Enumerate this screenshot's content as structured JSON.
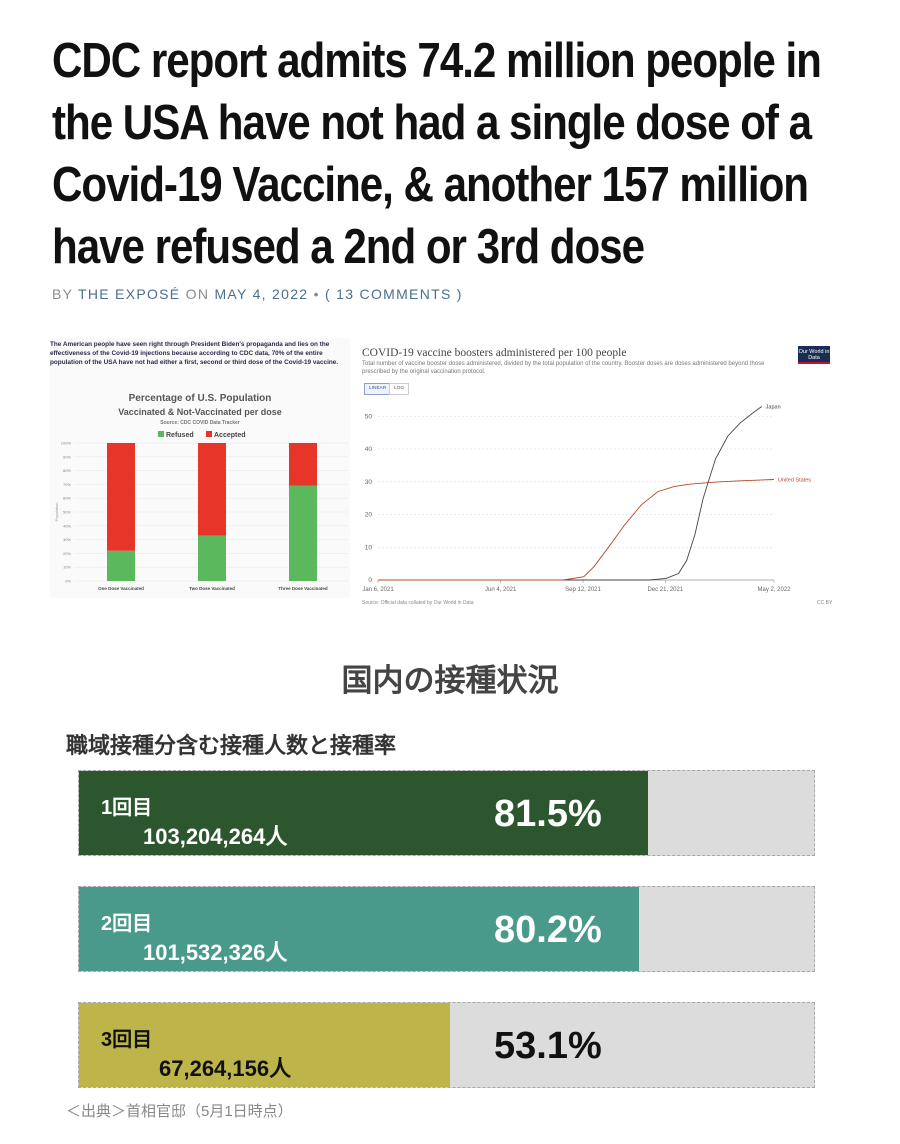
{
  "article": {
    "headline": "CDC report admits 74.2 million people in the USA have not had a single dose of a Covid-19 Vaccine, & another 157 million have refused a 2nd or 3rd dose",
    "byline": {
      "by": "BY",
      "author": "THE EXPOSÉ",
      "on": "ON",
      "date": "MAY 4, 2022",
      "bullet": "•",
      "comments": "( 13 COMMENTS )"
    }
  },
  "left_chart": {
    "intro": "The American people have seen right through President Biden's propaganda and lies on the effectiveness of the Covid-19 injections because according to CDC data, 70% of the entire population of the USA have not had either a first, second or third dose of the Covid-19 vaccine.",
    "chart_data": {
      "type": "bar",
      "title": "Percentage of U.S. Population Vaccinated & Not-Vaccinated per dose",
      "title_line1": "Percentage of U.S. Population",
      "title_line2": "Vaccinated & Not-Vaccinated per dose",
      "subtitle": "Source: CDC COVID Data Tracker",
      "ylabel": "Population",
      "ylim": [
        0,
        100
      ],
      "yticks": [
        "0%",
        "10%",
        "20%",
        "30%",
        "40%",
        "50%",
        "60%",
        "70%",
        "80%",
        "90%",
        "100%"
      ],
      "categories": [
        "One Dose Vaccinated",
        "Two Dose Vaccinated",
        "Three Dose Vaccinated"
      ],
      "series": [
        {
          "name": "Refused",
          "color": "#5cb85c",
          "values": [
            22,
            33,
            69
          ]
        },
        {
          "name": "Accepted",
          "color": "#e8352a",
          "values": [
            78,
            67,
            31
          ]
        }
      ],
      "legend_position": "top"
    }
  },
  "right_chart": {
    "title": "COVID-19 vaccine boosters administered per 100 people",
    "subtitle": "Total number of vaccine booster doses administered, divided by the total population of the country. Booster doses are doses administered beyond those prescribed by the original vaccination protocol.",
    "logo": "Our World in Data",
    "toggle_linear": "LINEAR",
    "toggle_log": "LOG",
    "source": "Source: Official data collated by Our World in Data",
    "license": "CC BY",
    "chart_data": {
      "type": "line",
      "xticks": [
        "Jan 6, 2021",
        "Jun 4, 2021",
        "Sep 12, 2021",
        "Dec 21, 2021",
        "May 2, 2022"
      ],
      "ylim": [
        0,
        55
      ],
      "yticks": [
        0,
        10,
        20,
        30,
        40,
        50
      ],
      "x_days": [
        0,
        149,
        249,
        349,
        481
      ],
      "series": [
        {
          "name": "Japan",
          "color": "#444444",
          "points": [
            [
              0,
              0
            ],
            [
              330,
              0
            ],
            [
              350,
              0.5
            ],
            [
              365,
              2
            ],
            [
              375,
              6
            ],
            [
              385,
              14
            ],
            [
              395,
              25
            ],
            [
              410,
              37
            ],
            [
              425,
              44
            ],
            [
              440,
              48
            ],
            [
              455,
              51
            ],
            [
              466,
              53
            ]
          ]
        },
        {
          "name": "United States",
          "color": "#b5482c",
          "points": [
            [
              0,
              0
            ],
            [
              225,
              0
            ],
            [
              250,
              1
            ],
            [
              262,
              4
            ],
            [
              280,
              10
            ],
            [
              300,
              17
            ],
            [
              320,
              23
            ],
            [
              340,
              27
            ],
            [
              360,
              28.6
            ],
            [
              380,
              29.3
            ],
            [
              410,
              29.9
            ],
            [
              440,
              30.3
            ],
            [
              481,
              30.7
            ]
          ]
        }
      ]
    }
  },
  "japan_section": {
    "title": "国内の接種状況",
    "subtitle": "職域接種分含む接種人数と接種率",
    "chart_data": {
      "type": "bar",
      "orientation": "horizontal",
      "categories": [
        "1回目",
        "2回目",
        "3回目"
      ],
      "counts": [
        "103,204,264人",
        "101,532,326人",
        "67,264,156人"
      ],
      "percent_labels": [
        "81.5%",
        "80.2%",
        "53.1%"
      ],
      "values": [
        81.5,
        80.2,
        53.1
      ],
      "xlim": [
        0,
        100
      ],
      "colors": [
        "#2c562d",
        "#4a9a8c",
        "#bdb44a"
      ]
    },
    "source": "＜出典＞首相官邸（5月1日時点）"
  }
}
